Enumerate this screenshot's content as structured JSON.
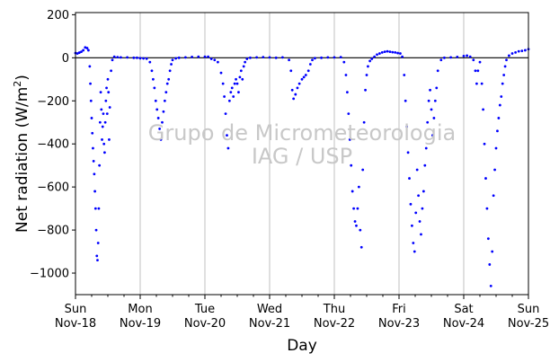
{
  "chart_data": {
    "type": "scatter",
    "title": "",
    "xlabel": "Day",
    "ylabel": "Net radiation (W/m²)",
    "ylabel_main": "Net radiation (W/m",
    "ylabel_sup": "2",
    "ylabel_close": ")",
    "xlim": [
      0,
      7
    ],
    "ylim": [
      -1100,
      210
    ],
    "yticks": [
      200,
      0,
      -200,
      -400,
      -600,
      -800,
      -1000
    ],
    "ytick_labels": [
      "200",
      "0",
      "−200",
      "−400",
      "−600",
      "−800",
      "−1000"
    ],
    "xticks": [
      {
        "x": 0,
        "day": "Sun",
        "date": "Nov-18"
      },
      {
        "x": 1,
        "day": "Mon",
        "date": "Nov-19"
      },
      {
        "x": 2,
        "day": "Tue",
        "date": "Nov-20"
      },
      {
        "x": 3,
        "day": "Wed",
        "date": "Nov-21"
      },
      {
        "x": 4,
        "day": "Thu",
        "date": "Nov-22"
      },
      {
        "x": 5,
        "day": "Fri",
        "date": "Nov-23"
      },
      {
        "x": 6,
        "day": "Sat",
        "date": "Nov-24"
      },
      {
        "x": 7,
        "day": "Sun",
        "date": "Nov-25"
      }
    ],
    "grid": "vertical at day boundaries",
    "zero_line": true,
    "series": [
      {
        "color": "#0000ff",
        "points": [
          [
            0.0,
            22
          ],
          [
            0.03,
            20
          ],
          [
            0.06,
            24
          ],
          [
            0.09,
            28
          ],
          [
            0.12,
            35
          ],
          [
            0.15,
            48
          ],
          [
            0.18,
            45
          ],
          [
            0.2,
            35
          ],
          [
            0.22,
            -40
          ],
          [
            0.23,
            -120
          ],
          [
            0.24,
            -200
          ],
          [
            0.25,
            -280
          ],
          [
            0.26,
            -350
          ],
          [
            0.27,
            -420
          ],
          [
            0.28,
            -480
          ],
          [
            0.29,
            -540
          ],
          [
            0.3,
            -620
          ],
          [
            0.31,
            -700
          ],
          [
            0.32,
            -800
          ],
          [
            0.33,
            -920
          ],
          [
            0.34,
            -940
          ],
          [
            0.35,
            -860
          ],
          [
            0.36,
            -700
          ],
          [
            0.37,
            -500
          ],
          [
            0.38,
            -300
          ],
          [
            0.39,
            -160
          ],
          [
            0.4,
            -240
          ],
          [
            0.41,
            -380
          ],
          [
            0.42,
            -320
          ],
          [
            0.43,
            -260
          ],
          [
            0.44,
            -400
          ],
          [
            0.45,
            -440
          ],
          [
            0.46,
            -300
          ],
          [
            0.47,
            -200
          ],
          [
            0.48,
            -140
          ],
          [
            0.49,
            -260
          ],
          [
            0.5,
            -100
          ],
          [
            0.51,
            -160
          ],
          [
            0.52,
            -380
          ],
          [
            0.53,
            -230
          ],
          [
            0.55,
            -60
          ],
          [
            0.57,
            -10
          ],
          [
            0.6,
            5
          ],
          [
            0.65,
            3
          ],
          [
            0.7,
            2
          ],
          [
            0.8,
            2
          ],
          [
            0.9,
            0
          ],
          [
            0.95,
            0
          ],
          [
            1.0,
            -2
          ],
          [
            1.05,
            -3
          ],
          [
            1.1,
            -4
          ],
          [
            1.15,
            -20
          ],
          [
            1.18,
            -60
          ],
          [
            1.2,
            -100
          ],
          [
            1.22,
            -140
          ],
          [
            1.24,
            -200
          ],
          [
            1.26,
            -240
          ],
          [
            1.28,
            -280
          ],
          [
            1.3,
            -330
          ],
          [
            1.32,
            -380
          ],
          [
            1.34,
            -300
          ],
          [
            1.36,
            -250
          ],
          [
            1.38,
            -200
          ],
          [
            1.4,
            -160
          ],
          [
            1.42,
            -120
          ],
          [
            1.44,
            -100
          ],
          [
            1.46,
            -60
          ],
          [
            1.48,
            -30
          ],
          [
            1.5,
            -10
          ],
          [
            1.55,
            -3
          ],
          [
            1.6,
            0
          ],
          [
            1.7,
            2
          ],
          [
            1.8,
            4
          ],
          [
            1.9,
            5
          ],
          [
            2.0,
            5
          ],
          [
            2.05,
            5
          ],
          [
            2.1,
            -5
          ],
          [
            2.15,
            -10
          ],
          [
            2.2,
            -20
          ],
          [
            2.25,
            -70
          ],
          [
            2.28,
            -120
          ],
          [
            2.3,
            -180
          ],
          [
            2.32,
            -260
          ],
          [
            2.34,
            -360
          ],
          [
            2.36,
            -420
          ],
          [
            2.38,
            -200
          ],
          [
            2.4,
            -160
          ],
          [
            2.42,
            -140
          ],
          [
            2.44,
            -180
          ],
          [
            2.46,
            -120
          ],
          [
            2.48,
            -100
          ],
          [
            2.5,
            -120
          ],
          [
            2.52,
            -160
          ],
          [
            2.54,
            -90
          ],
          [
            2.56,
            -60
          ],
          [
            2.58,
            -100
          ],
          [
            2.6,
            -40
          ],
          [
            2.62,
            -20
          ],
          [
            2.65,
            -5
          ],
          [
            2.7,
            0
          ],
          [
            2.8,
            2
          ],
          [
            2.9,
            3
          ],
          [
            3.0,
            2
          ],
          [
            3.1,
            0
          ],
          [
            3.2,
            2
          ],
          [
            3.3,
            -10
          ],
          [
            3.33,
            -60
          ],
          [
            3.35,
            -150
          ],
          [
            3.37,
            -190
          ],
          [
            3.4,
            -170
          ],
          [
            3.43,
            -140
          ],
          [
            3.46,
            -120
          ],
          [
            3.5,
            -100
          ],
          [
            3.53,
            -90
          ],
          [
            3.56,
            -80
          ],
          [
            3.6,
            -60
          ],
          [
            3.63,
            -30
          ],
          [
            3.66,
            -10
          ],
          [
            3.7,
            -2
          ],
          [
            3.8,
            0
          ],
          [
            3.9,
            2
          ],
          [
            4.0,
            2
          ],
          [
            4.1,
            3
          ],
          [
            4.15,
            -20
          ],
          [
            4.18,
            -80
          ],
          [
            4.2,
            -160
          ],
          [
            4.22,
            -260
          ],
          [
            4.24,
            -380
          ],
          [
            4.26,
            -500
          ],
          [
            4.28,
            -620
          ],
          [
            4.3,
            -700
          ],
          [
            4.32,
            -760
          ],
          [
            4.34,
            -780
          ],
          [
            4.36,
            -700
          ],
          [
            4.38,
            -600
          ],
          [
            4.4,
            -800
          ],
          [
            4.42,
            -880
          ],
          [
            4.44,
            -520
          ],
          [
            4.46,
            -300
          ],
          [
            4.48,
            -150
          ],
          [
            4.5,
            -80
          ],
          [
            4.52,
            -40
          ],
          [
            4.55,
            -15
          ],
          [
            4.58,
            -5
          ],
          [
            4.62,
            5
          ],
          [
            4.66,
            15
          ],
          [
            4.7,
            20
          ],
          [
            4.74,
            25
          ],
          [
            4.78,
            28
          ],
          [
            4.82,
            30
          ],
          [
            4.86,
            28
          ],
          [
            4.9,
            26
          ],
          [
            4.94,
            25
          ],
          [
            4.98,
            22
          ],
          [
            5.02,
            20
          ],
          [
            5.05,
            5
          ],
          [
            5.08,
            -80
          ],
          [
            5.1,
            -200
          ],
          [
            5.12,
            -320
          ],
          [
            5.14,
            -440
          ],
          [
            5.16,
            -560
          ],
          [
            5.18,
            -680
          ],
          [
            5.2,
            -780
          ],
          [
            5.22,
            -860
          ],
          [
            5.24,
            -900
          ],
          [
            5.26,
            -720
          ],
          [
            5.28,
            -520
          ],
          [
            5.3,
            -640
          ],
          [
            5.32,
            -760
          ],
          [
            5.34,
            -820
          ],
          [
            5.36,
            -700
          ],
          [
            5.38,
            -620
          ],
          [
            5.4,
            -500
          ],
          [
            5.42,
            -420
          ],
          [
            5.44,
            -300
          ],
          [
            5.46,
            -200
          ],
          [
            5.48,
            -150
          ],
          [
            5.5,
            -240
          ],
          [
            5.52,
            -360
          ],
          [
            5.54,
            -280
          ],
          [
            5.56,
            -200
          ],
          [
            5.58,
            -140
          ],
          [
            5.6,
            -60
          ],
          [
            5.65,
            -10
          ],
          [
            5.7,
            0
          ],
          [
            5.8,
            2
          ],
          [
            5.9,
            4
          ],
          [
            6.0,
            8
          ],
          [
            6.05,
            10
          ],
          [
            6.1,
            5
          ],
          [
            6.15,
            -10
          ],
          [
            6.18,
            -60
          ],
          [
            6.2,
            -120
          ],
          [
            6.22,
            -60
          ],
          [
            6.25,
            -20
          ],
          [
            6.28,
            -120
          ],
          [
            6.3,
            -240
          ],
          [
            6.32,
            -400
          ],
          [
            6.34,
            -560
          ],
          [
            6.36,
            -700
          ],
          [
            6.38,
            -840
          ],
          [
            6.4,
            -960
          ],
          [
            6.42,
            -1060
          ],
          [
            6.44,
            -900
          ],
          [
            6.46,
            -640
          ],
          [
            6.48,
            -520
          ],
          [
            6.5,
            -420
          ],
          [
            6.52,
            -340
          ],
          [
            6.54,
            -280
          ],
          [
            6.56,
            -220
          ],
          [
            6.58,
            -180
          ],
          [
            6.6,
            -120
          ],
          [
            6.62,
            -80
          ],
          [
            6.64,
            -40
          ],
          [
            6.66,
            -10
          ],
          [
            6.7,
            10
          ],
          [
            6.75,
            20
          ],
          [
            6.8,
            25
          ],
          [
            6.85,
            30
          ],
          [
            6.9,
            32
          ],
          [
            6.95,
            35
          ],
          [
            7.0,
            40
          ]
        ]
      }
    ],
    "zero_line_color": "#000000",
    "grid_color": "#b0b0b0"
  },
  "watermark": {
    "line1": "Grupo de Micrometeorologia",
    "line2": "IAG / USP"
  }
}
